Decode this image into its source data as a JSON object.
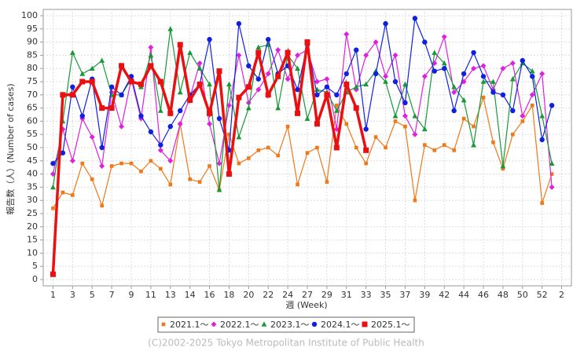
{
  "chart_data": {
    "type": "line",
    "y_label": "報告数（人）(Number of cases)",
    "x_label": "週 (Week)",
    "copyright": "(C)2002-2025 Tokyo Metropolitan Institute of Public Health",
    "xlim": [
      0,
      54
    ],
    "xticks": [
      1,
      3,
      5,
      7,
      9,
      11,
      13,
      {
        "value": 15,
        "label": "14"
      },
      {
        "value": 17,
        "label": "16"
      },
      {
        "value": 19,
        "label": "18"
      },
      {
        "value": 21,
        "label": "20"
      },
      {
        "value": 23,
        "label": "22"
      },
      {
        "value": 25,
        "label": "24"
      },
      {
        "value": 27,
        "label": "27"
      },
      {
        "value": 29,
        "label": "29"
      },
      {
        "value": 31,
        "label": "31"
      },
      {
        "value": 33,
        "label": "33"
      },
      {
        "value": 35,
        "label": "35"
      },
      {
        "value": 37,
        "label": "37"
      },
      {
        "value": 39,
        "label": "39"
      },
      {
        "value": 41,
        "label": "42"
      },
      {
        "value": 43,
        "label": "44"
      },
      {
        "value": 45,
        "label": "46"
      },
      {
        "value": 47,
        "label": "48"
      },
      {
        "value": 49,
        "label": "50"
      },
      {
        "value": 51,
        "label": "52"
      },
      {
        "value": 53,
        "label": "2"
      }
    ],
    "ylim": [
      0,
      100
    ],
    "yticks": [
      0,
      5,
      10,
      15,
      20,
      25,
      30,
      35,
      40,
      45,
      50,
      55,
      60,
      65,
      70,
      75,
      80,
      85,
      90,
      95,
      100
    ],
    "grid": true,
    "x": [
      1,
      2,
      3,
      4,
      5,
      6,
      7,
      8,
      9,
      10,
      11,
      12,
      13,
      14,
      15,
      16,
      17,
      18,
      19,
      20,
      21,
      22,
      23,
      24,
      25,
      26,
      27,
      28,
      29,
      30,
      31,
      32,
      33,
      34,
      35,
      36,
      37,
      38,
      39,
      40,
      41,
      42,
      43,
      44,
      45,
      46,
      47,
      48,
      49,
      50,
      51,
      52
    ],
    "series": [
      {
        "name": "2021.1～",
        "color": "#f07818",
        "marker": "square",
        "values": [
          27,
          33,
          32,
          44,
          38,
          28,
          43,
          44,
          44,
          41,
          45,
          42,
          36,
          59,
          38,
          37,
          43,
          34,
          55,
          44,
          46,
          49,
          50,
          47,
          58,
          36,
          48,
          50,
          37,
          66,
          59,
          50,
          44,
          54,
          50,
          60,
          58,
          30,
          51,
          49,
          51,
          49,
          61,
          58,
          69,
          52,
          42,
          55,
          60,
          66,
          29,
          40
        ]
      },
      {
        "name": "2022.1～",
        "color": "#e020e0",
        "marker": "diamond",
        "values": [
          40,
          57,
          45,
          61,
          54,
          43,
          71,
          58,
          76,
          61,
          88,
          49,
          45,
          59,
          69,
          82,
          59,
          44,
          66,
          85,
          67,
          72,
          78,
          87,
          76,
          85,
          87,
          75,
          76,
          57,
          93,
          72,
          85,
          90,
          77,
          85,
          62,
          55,
          77,
          82,
          92,
          71,
          75,
          80,
          81,
          72,
          80,
          82,
          62,
          70,
          78,
          35
        ]
      },
      {
        "name": "2023.1～",
        "color": "#189838",
        "marker": "triangle",
        "values": [
          35,
          60,
          86,
          78,
          80,
          83,
          70,
          70,
          76,
          73,
          85,
          64,
          95,
          71,
          86,
          80,
          74,
          34,
          74,
          54,
          65,
          88,
          89,
          65,
          85,
          80,
          61,
          72,
          71,
          64,
          71,
          73,
          74,
          79,
          75,
          62,
          74,
          62,
          57,
          86,
          82,
          73,
          68,
          51,
          75,
          75,
          43,
          76,
          82,
          79,
          62,
          44
        ]
      },
      {
        "name": "2024.1～",
        "color": "#1020e0",
        "marker": "circle",
        "values": [
          44,
          48,
          73,
          62,
          76,
          50,
          73,
          70,
          77,
          62,
          56,
          51,
          58,
          64,
          70,
          74,
          91,
          61,
          49,
          97,
          81,
          76,
          91,
          78,
          81,
          72,
          89,
          70,
          73,
          70,
          78,
          87,
          57,
          78,
          97,
          75,
          67,
          99,
          90,
          79,
          80,
          64,
          78,
          86,
          77,
          71,
          70,
          64,
          83,
          77,
          53,
          66
        ]
      },
      {
        "name": "2025.1～",
        "color": "#e81010",
        "marker": "bigsquare",
        "values": [
          2,
          70,
          70,
          75,
          75,
          65,
          65,
          81,
          75,
          74,
          81,
          75,
          63,
          89,
          68,
          74,
          63,
          79,
          40,
          69,
          73,
          86,
          70,
          77,
          86,
          63,
          90,
          59,
          70,
          50,
          74,
          65,
          49,
          null,
          null,
          null,
          null,
          null,
          null,
          null,
          null,
          null,
          null,
          null,
          null,
          null,
          null,
          null,
          null,
          null,
          null,
          null
        ]
      }
    ]
  }
}
